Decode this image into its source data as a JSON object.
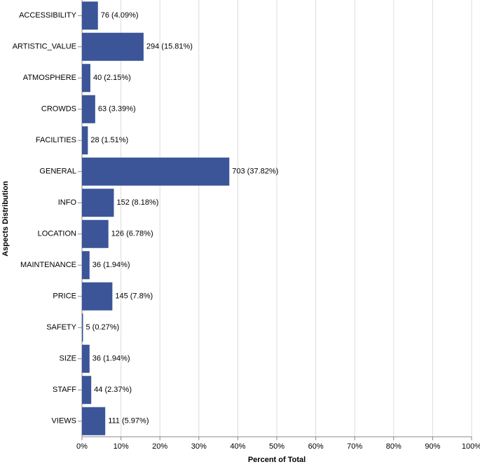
{
  "chart_data": {
    "type": "hbar",
    "x_label": "Percent of Total",
    "y_label": "Aspects Distribution",
    "categories": [
      "ACCESSIBILITY",
      "ARTISTIC_VALUE",
      "ATMOSPHERE",
      "CROWDS",
      "FACILITIES",
      "GENERAL",
      "INFO",
      "LOCATION",
      "MAINTENANCE",
      "PRICE",
      "SAFETY",
      "SIZE",
      "STAFF",
      "VIEWS"
    ],
    "values": [
      4.09,
      15.81,
      2.15,
      3.39,
      1.51,
      37.82,
      8.18,
      6.78,
      1.94,
      7.8,
      0.27,
      1.94,
      2.37,
      5.97
    ],
    "value_labels": [
      "76 (4.09%)",
      "294 (15.81%)",
      "40 (2.15%)",
      "63 (3.39%)",
      "28 (1.51%)",
      "703 (37.82%)",
      "152 (8.18%)",
      "126 (6.78%)",
      "36 (1.94%)",
      "145 (7.8%)",
      "5 (0.27%)",
      "36 (1.94%)",
      "44 (2.37%)",
      "111 (5.97%)"
    ],
    "color": "#3b5598",
    "xlim": [
      0,
      100
    ],
    "xticks": [
      {
        "value": 0,
        "label": "0%"
      },
      {
        "value": 10,
        "label": "10%"
      },
      {
        "value": 20,
        "label": "20%"
      },
      {
        "value": 30,
        "label": "30%"
      },
      {
        "value": 40,
        "label": "40%"
      },
      {
        "value": 50,
        "label": "50%"
      },
      {
        "value": 60,
        "label": "60%"
      },
      {
        "value": 70,
        "label": "70%"
      },
      {
        "value": 80,
        "label": "80%"
      },
      {
        "value": 90,
        "label": "90%"
      },
      {
        "value": 100,
        "label": "100%"
      }
    ],
    "grid": true
  }
}
